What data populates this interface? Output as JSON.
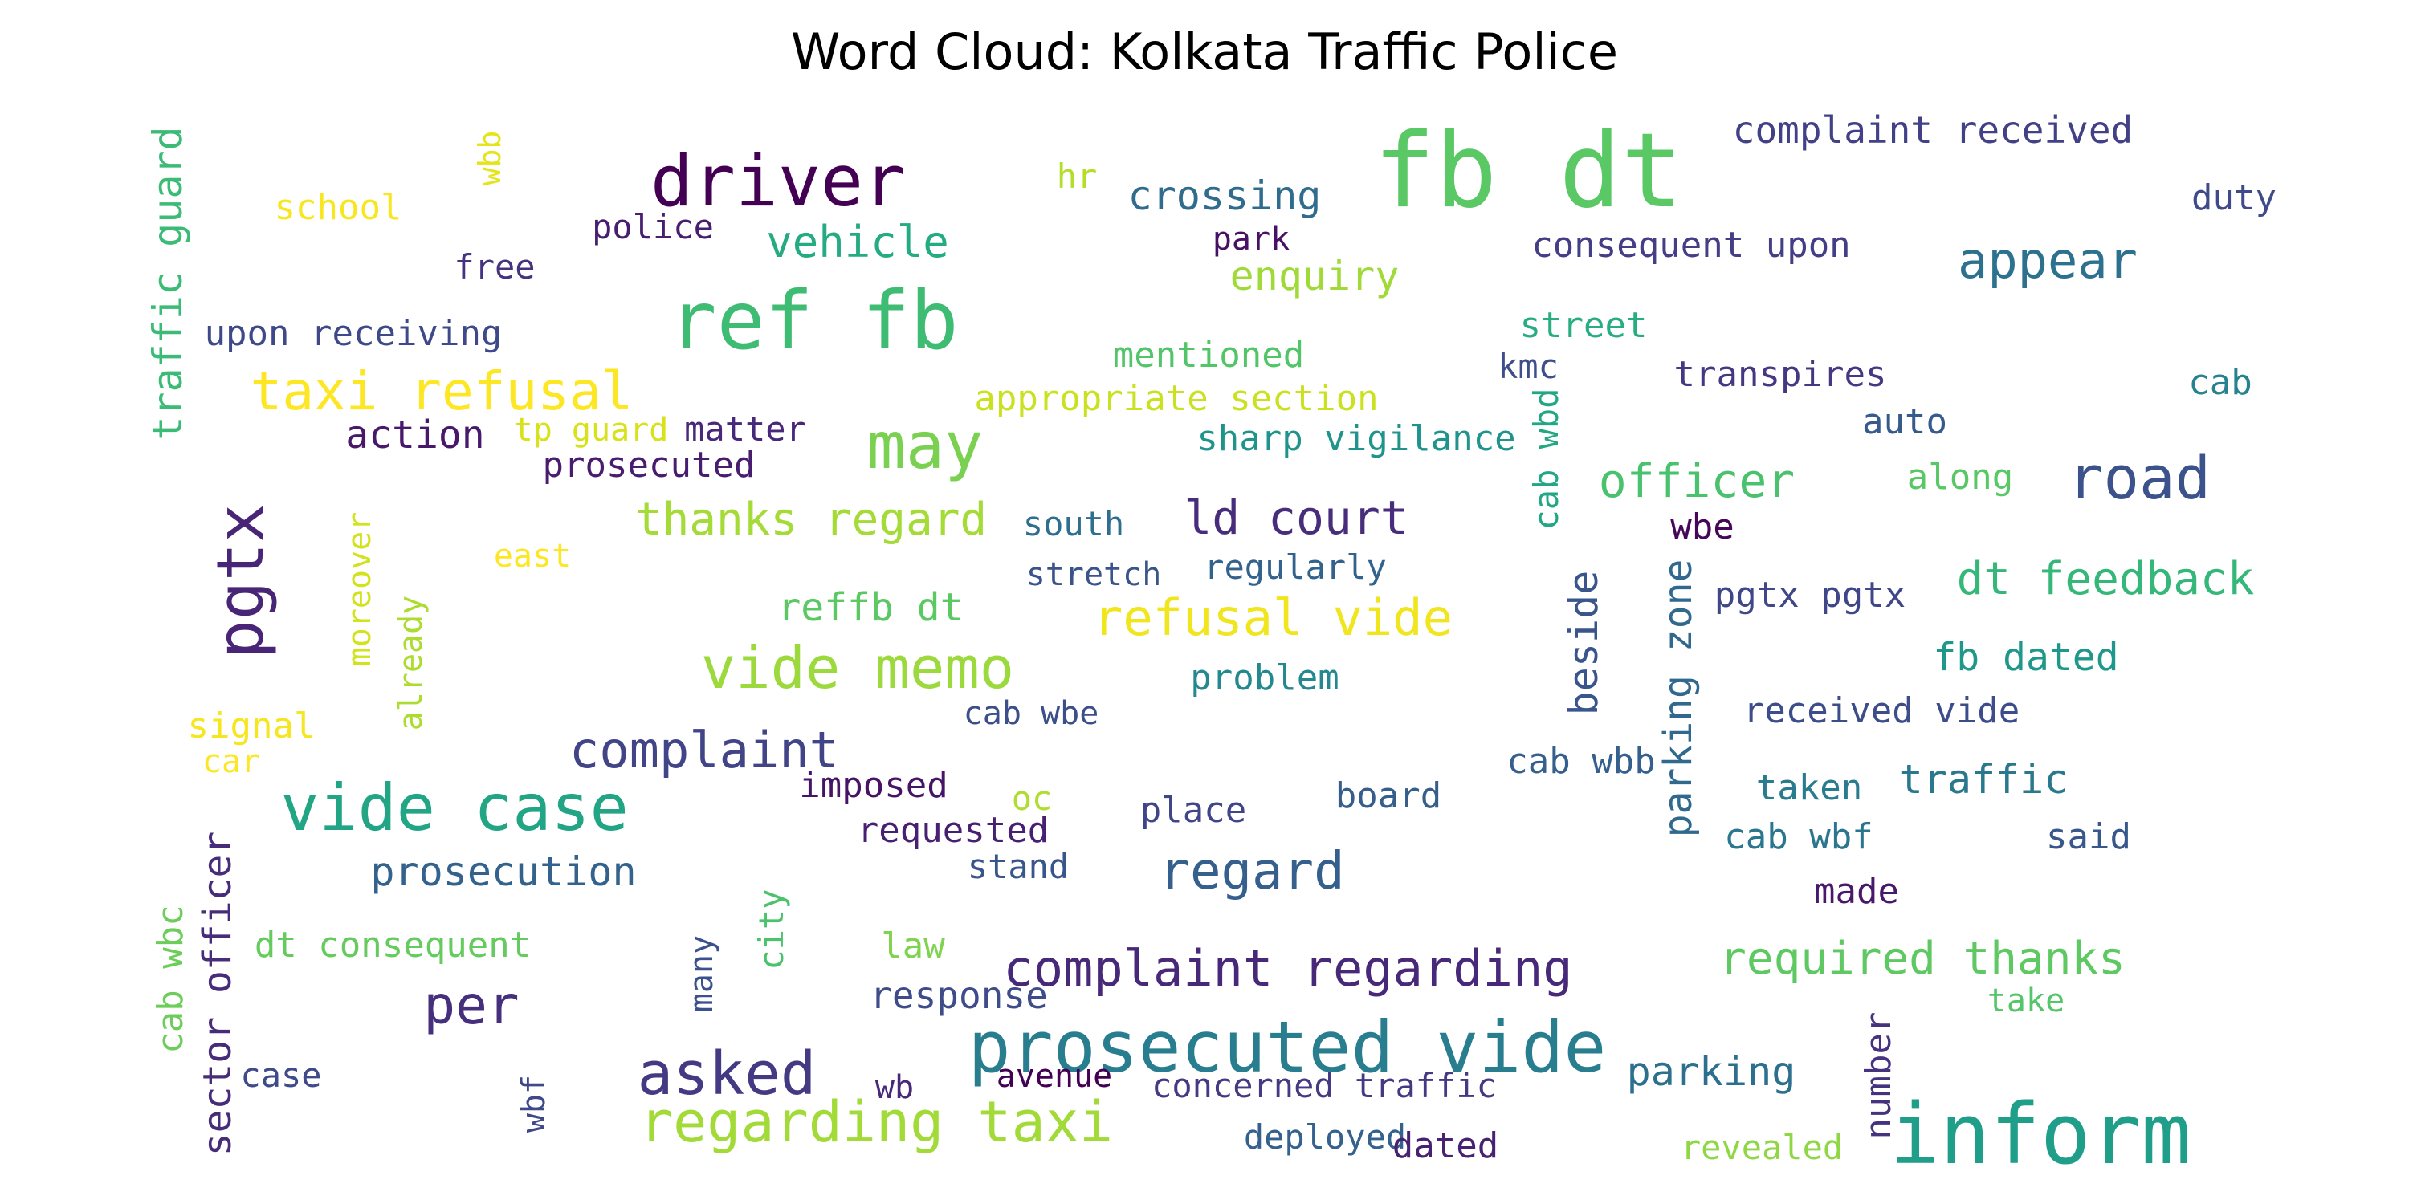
{
  "title": "Word Cloud: Kolkata Traffic Police",
  "words": [
    {
      "text": "fb dt",
      "color": "#5ac864"
    },
    {
      "text": "driver",
      "color": "#440154"
    },
    {
      "text": "ref fb",
      "color": "#3fbc73"
    },
    {
      "text": "taxi refusal",
      "color": "#fde725"
    },
    {
      "text": "may",
      "color": "#7ad151"
    },
    {
      "text": "pgtx",
      "color": "#482576"
    },
    {
      "text": "vide case",
      "color": "#21a585"
    },
    {
      "text": "vide memo",
      "color": "#9bd93c"
    },
    {
      "text": "prosecuted vide",
      "color": "#287d8e"
    },
    {
      "text": "inform",
      "color": "#1f9e89"
    },
    {
      "text": "asked",
      "color": "#443983"
    },
    {
      "text": "regarding taxi",
      "color": "#a2da37"
    },
    {
      "text": "complaint regarding",
      "color": "#482878"
    },
    {
      "text": "road",
      "color": "#3b528b"
    },
    {
      "text": "appear",
      "color": "#2c718e"
    },
    {
      "text": "complaint",
      "color": "#414487"
    },
    {
      "text": "per",
      "color": "#46307e"
    },
    {
      "text": "regard",
      "color": "#355f8d"
    },
    {
      "text": "refusal vide",
      "color": "#f1e51d"
    },
    {
      "text": "thanks regard",
      "color": "#a5db36"
    },
    {
      "text": "ld court",
      "color": "#472d7b"
    },
    {
      "text": "officer",
      "color": "#4ac16d"
    },
    {
      "text": "dt feedback",
      "color": "#35b779"
    },
    {
      "text": "required thanks",
      "color": "#5ec962"
    },
    {
      "text": "prosecution",
      "color": "#33638d"
    },
    {
      "text": "parking",
      "color": "#2d708e"
    },
    {
      "text": "traffic",
      "color": "#2a788e"
    },
    {
      "text": "vehicle",
      "color": "#25ab82"
    },
    {
      "text": "crossing",
      "color": "#2f6c8e"
    },
    {
      "text": "enquiry",
      "color": "#a0da39"
    },
    {
      "text": "complaint received",
      "color": "#424086"
    },
    {
      "text": "consequent upon",
      "color": "#433e85"
    },
    {
      "text": "duty",
      "color": "#3e4a89"
    },
    {
      "text": "street",
      "color": "#27ad81"
    },
    {
      "text": "transpires",
      "color": "#453781"
    },
    {
      "text": "cab",
      "color": "#26828e"
    },
    {
      "text": "auto",
      "color": "#375a8c"
    },
    {
      "text": "along",
      "color": "#58c765"
    },
    {
      "text": "upon receiving",
      "color": "#3e4989"
    },
    {
      "text": "school",
      "color": "#f8e621"
    },
    {
      "text": "wbb",
      "color": "#e5e419"
    },
    {
      "text": "police",
      "color": "#481f70"
    },
    {
      "text": "free",
      "color": "#46337f"
    },
    {
      "text": "hr",
      "color": "#b5de2b"
    },
    {
      "text": "park",
      "color": "#471164"
    },
    {
      "text": "traffic guard",
      "color": "#3bbb75"
    },
    {
      "text": "mentioned",
      "color": "#52c569"
    },
    {
      "text": "appropriate section",
      "color": "#cae11f"
    },
    {
      "text": "sharp vigilance",
      "color": "#1f948c"
    },
    {
      "text": "kmc",
      "color": "#3d4e8a"
    },
    {
      "text": "action",
      "color": "#48186a"
    },
    {
      "text": "tp guard",
      "color": "#d8e219"
    },
    {
      "text": "matter",
      "color": "#482979"
    },
    {
      "text": "prosecuted",
      "color": "#481c6e"
    },
    {
      "text": "cab wbd",
      "color": "#22a785"
    },
    {
      "text": "south",
      "color": "#2e6e8e"
    },
    {
      "text": "stretch",
      "color": "#3a538b"
    },
    {
      "text": "regularly",
      "color": "#33628d"
    },
    {
      "text": "east",
      "color": "#fde725"
    },
    {
      "text": "moreover",
      "color": "#d2e21b"
    },
    {
      "text": "already",
      "color": "#addc30"
    },
    {
      "text": "reffb dt",
      "color": "#5cc863"
    },
    {
      "text": "wbe",
      "color": "#46075a"
    },
    {
      "text": "pgtx pgtx",
      "color": "#3f4788"
    },
    {
      "text": "beside",
      "color": "#3a548c"
    },
    {
      "text": "parking zone",
      "color": "#31688e"
    },
    {
      "text": "fb dated",
      "color": "#1f988b"
    },
    {
      "text": "problem",
      "color": "#23898e"
    },
    {
      "text": "received vide",
      "color": "#3d4d8a"
    },
    {
      "text": "signal",
      "color": "#f6e620"
    },
    {
      "text": "car",
      "color": "#fde725"
    },
    {
      "text": "cab wbe",
      "color": "#3c4f8a"
    },
    {
      "text": "imposed",
      "color": "#471365"
    },
    {
      "text": "oc",
      "color": "#b0dd2f"
    },
    {
      "text": "place",
      "color": "#404588"
    },
    {
      "text": "board",
      "color": "#355e8d"
    },
    {
      "text": "cab wbb",
      "color": "#355f8d"
    },
    {
      "text": "taken",
      "color": "#297b8e"
    },
    {
      "text": "requested",
      "color": "#482071"
    },
    {
      "text": "stand",
      "color": "#39568c"
    },
    {
      "text": "cab wbf",
      "color": "#2a768e"
    },
    {
      "text": "said",
      "color": "#38588c"
    },
    {
      "text": "made",
      "color": "#48186a"
    },
    {
      "text": "sector officer",
      "color": "#472c7a"
    },
    {
      "text": "cab wbc",
      "color": "#6ccd5a"
    },
    {
      "text": "dt consequent",
      "color": "#65cb5e"
    },
    {
      "text": "many",
      "color": "#3b518b"
    },
    {
      "text": "city",
      "color": "#4cc26c"
    },
    {
      "text": "law",
      "color": "#7fd34e"
    },
    {
      "text": "response",
      "color": "#3e4c8a"
    },
    {
      "text": "take",
      "color": "#54c568"
    },
    {
      "text": "case",
      "color": "#3e4a89"
    },
    {
      "text": "wbf",
      "color": "#3f4889"
    },
    {
      "text": "wb",
      "color": "#482979"
    },
    {
      "text": "avenue",
      "color": "#440154"
    },
    {
      "text": "concerned traffic",
      "color": "#443983"
    },
    {
      "text": "number",
      "color": "#46337f"
    },
    {
      "text": "deployed",
      "color": "#34618d"
    },
    {
      "text": "dated",
      "color": "#482173"
    },
    {
      "text": "revealed",
      "color": "#8fd744"
    }
  ]
}
